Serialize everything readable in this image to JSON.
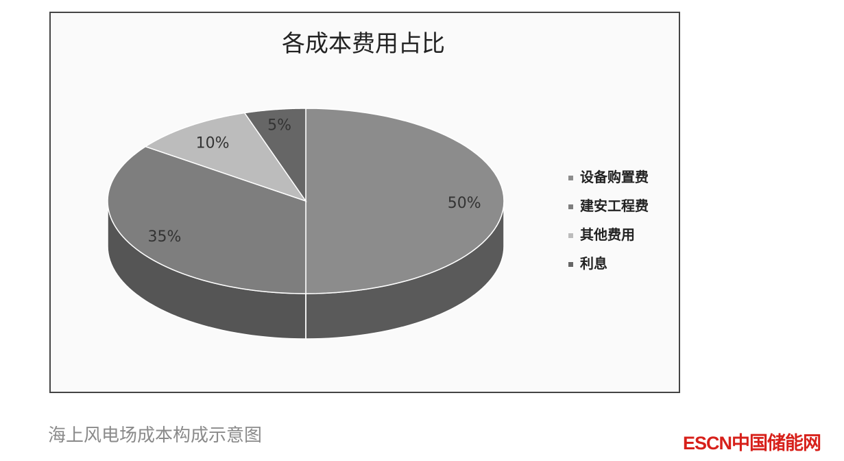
{
  "chart_data": {
    "type": "pie",
    "style": "3d",
    "title": "各成本费用占比",
    "categories": [
      "设备购置费",
      "建安工程费",
      "其他费用",
      "利息"
    ],
    "values": [
      50,
      35,
      10,
      5
    ],
    "data_labels": [
      "50%",
      "35%",
      "10%",
      "5%"
    ],
    "colors": [
      "#8c8c8c",
      "#7e7e7e",
      "#bcbcbc",
      "#666666"
    ],
    "side_colors": [
      "#5a5a5a",
      "#555555",
      "#8a8a8a",
      "#444444"
    ],
    "legend_position": "right"
  },
  "caption": "海上风电场成本构成示意图",
  "logo": "ESCN中国储能网"
}
